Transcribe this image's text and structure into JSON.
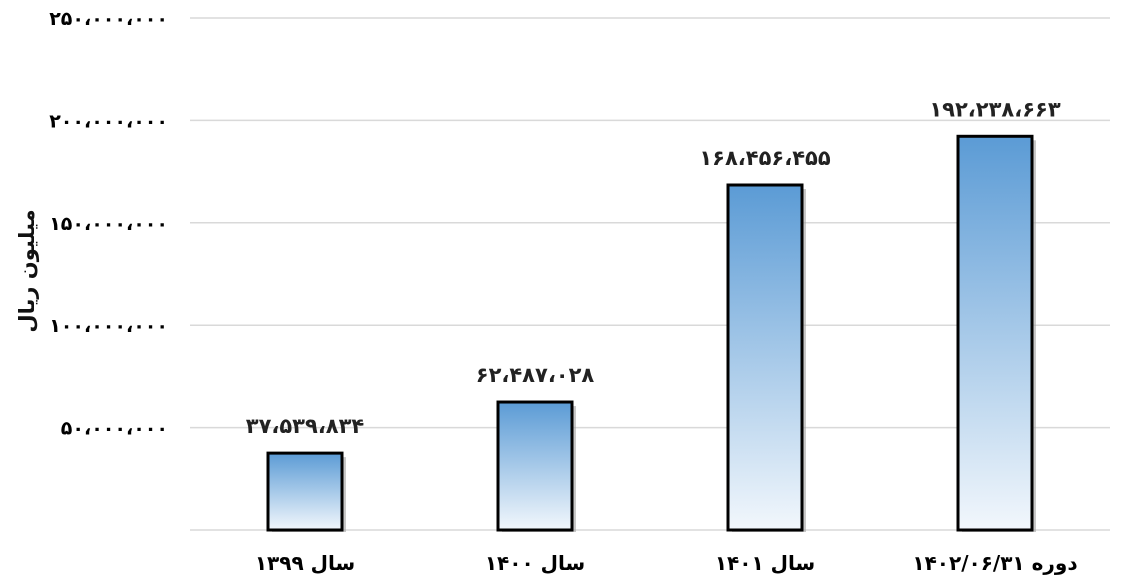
{
  "chart_data": {
    "type": "bar",
    "categories": [
      "سال ۱۳۹۹",
      "سال ۱۴۰۰",
      "سال ۱۴۰۱",
      "دوره ۱۴۰۲/۰۶/۳۱"
    ],
    "values": [
      37539834,
      62487028,
      168456455,
      192238663
    ],
    "data_labels": [
      "۳۷،۵۳۹،۸۳۴",
      "۶۲،۴۸۷،۰۲۸",
      "۱۶۸،۴۵۶،۴۵۵",
      "۱۹۲،۲۳۸،۶۶۳"
    ],
    "ylabel": "میلیون ریال",
    "ylim": [
      0,
      250000000
    ],
    "yticks": [
      50000000,
      100000000,
      150000000,
      200000000,
      250000000
    ],
    "ytick_labels": [
      "۵۰،۰۰۰،۰۰۰",
      "۱۰۰،۰۰۰،۰۰۰",
      "۱۵۰،۰۰۰،۰۰۰",
      "۲۰۰،۰۰۰،۰۰۰",
      "۲۵۰،۰۰۰،۰۰۰"
    ],
    "grid": true,
    "bar_color_top": "#5b9bd5",
    "bar_color_bottom": "#f2f7fc",
    "bar_border": "#000000",
    "grid_color": "#d9d9d9"
  }
}
